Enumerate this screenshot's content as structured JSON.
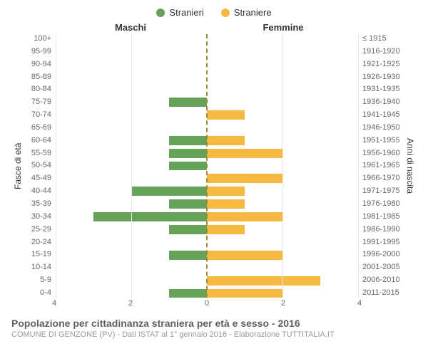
{
  "legend": {
    "items": [
      {
        "label": "Stranieri",
        "color": "#66a258"
      },
      {
        "label": "Straniere",
        "color": "#f6b942"
      }
    ]
  },
  "headers": {
    "left": "Maschi",
    "right": "Femmine"
  },
  "ylabels": {
    "left": "Fasce di età",
    "right": "Anni di nascita"
  },
  "chart": {
    "type": "pyramid-bar",
    "x_max": 4,
    "xticks_left": [
      4,
      2,
      0
    ],
    "xticks_right": [
      2,
      4
    ],
    "bar_height_pct": 72,
    "colors": {
      "male": "#66a258",
      "female": "#f6b942",
      "grid": "#e6e6e6",
      "center": "#9e8b38",
      "bg": "#ffffff"
    },
    "age_labels": [
      "100+",
      "95-99",
      "90-94",
      "85-89",
      "80-84",
      "75-79",
      "70-74",
      "65-69",
      "60-64",
      "55-59",
      "50-54",
      "45-49",
      "40-44",
      "35-39",
      "30-34",
      "25-29",
      "20-24",
      "15-19",
      "10-14",
      "5-9",
      "0-4"
    ],
    "birth_labels": [
      "≤ 1915",
      "1916-1920",
      "1921-1925",
      "1926-1930",
      "1931-1935",
      "1936-1940",
      "1941-1945",
      "1946-1950",
      "1951-1955",
      "1956-1960",
      "1961-1965",
      "1966-1970",
      "1971-1975",
      "1976-1980",
      "1981-1985",
      "1986-1990",
      "1991-1995",
      "1996-2000",
      "2001-2005",
      "2006-2010",
      "2011-2015"
    ],
    "male": [
      0,
      0,
      0,
      0,
      0,
      1,
      0,
      0,
      1,
      1,
      1,
      0,
      2,
      1,
      3,
      1,
      0,
      1,
      0,
      0,
      1
    ],
    "female": [
      0,
      0,
      0,
      0,
      0,
      0,
      1,
      0,
      1,
      2,
      0,
      2,
      1,
      1,
      2,
      1,
      0,
      2,
      0,
      3,
      2
    ]
  },
  "footer": {
    "title": "Popolazione per cittadinanza straniera per età e sesso - 2016",
    "sub": "COMUNE DI GENZONE (PV) - Dati ISTAT al 1° gennaio 2016 - Elaborazione TUTTITALIA.IT"
  }
}
